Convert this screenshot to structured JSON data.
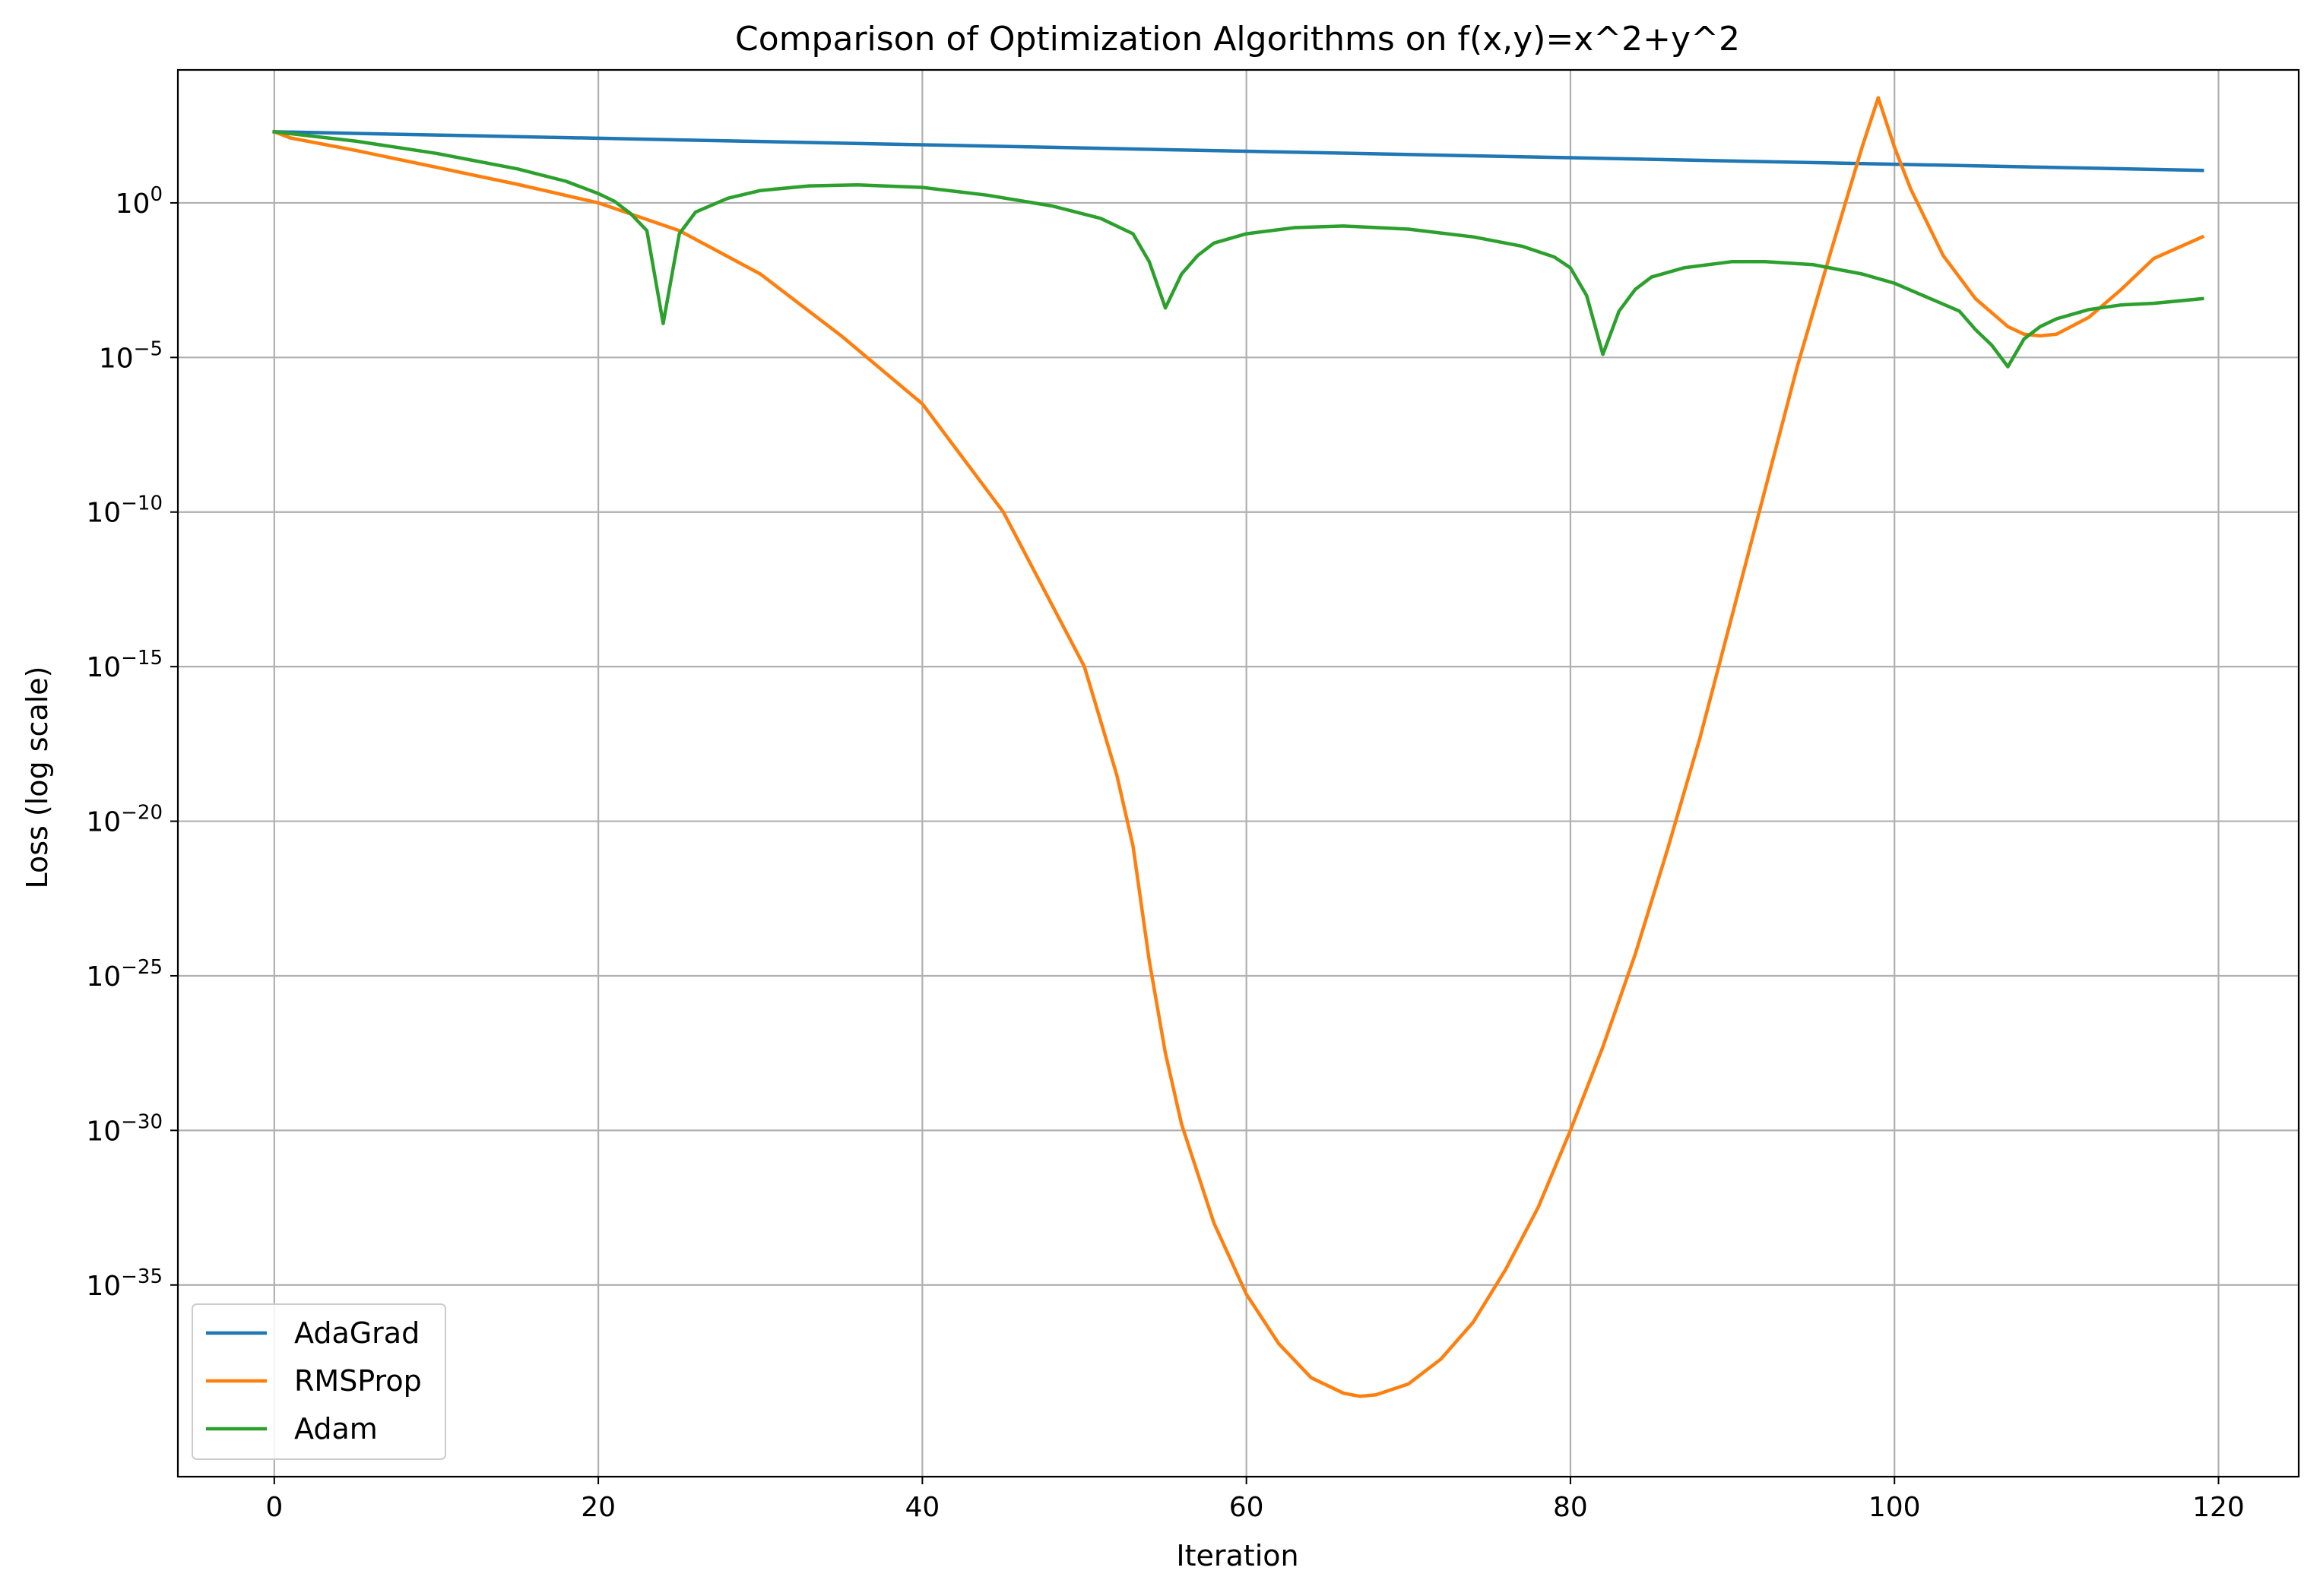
{
  "chart_data": {
    "type": "line",
    "title": "Comparison of Optimization Algorithms on f(x,y)=x^2+y^2",
    "xlabel": "Iteration",
    "ylabel": "Loss (log scale)",
    "y_scale": "log",
    "xlim": [
      -5.95,
      124.95
    ],
    "ylim_log10": [
      -41.2,
      4.3
    ],
    "grid": true,
    "legend_position": "lower-left",
    "x_ticks": [
      0,
      20,
      40,
      60,
      80,
      100,
      120
    ],
    "x_tick_labels": [
      "0",
      "20",
      "40",
      "60",
      "80",
      "100",
      "120"
    ],
    "y_ticks_log10": [
      0,
      -5,
      -10,
      -15,
      -20,
      -25,
      -30,
      -35
    ],
    "y_tick_labels": [
      {
        "base": "10",
        "exp": "0"
      },
      {
        "base": "10",
        "exp": "−5"
      },
      {
        "base": "10",
        "exp": "−10"
      },
      {
        "base": "10",
        "exp": "−15"
      },
      {
        "base": "10",
        "exp": "−20"
      },
      {
        "base": "10",
        "exp": "−25"
      },
      {
        "base": "10",
        "exp": "−30"
      },
      {
        "base": "10",
        "exp": "−35"
      }
    ],
    "series": [
      {
        "name": "AdaGrad",
        "color": "#1f77b4",
        "log10_points": [
          [
            0,
            2.3
          ],
          [
            119,
            1.05
          ]
        ]
      },
      {
        "name": "RMSProp",
        "color": "#ff7f0e",
        "log10_points": [
          [
            0,
            2.3
          ],
          [
            1,
            2.1
          ],
          [
            5,
            1.7
          ],
          [
            10,
            1.15
          ],
          [
            15,
            0.6
          ],
          [
            20,
            0.0
          ],
          [
            25,
            -0.9
          ],
          [
            30,
            -2.3
          ],
          [
            35,
            -4.3
          ],
          [
            40,
            -6.5
          ],
          [
            45,
            -10.0
          ],
          [
            50,
            -15.0
          ],
          [
            52,
            -18.5
          ],
          [
            53,
            -20.8
          ],
          [
            54,
            -24.5
          ],
          [
            55,
            -27.5
          ],
          [
            56,
            -29.8
          ],
          [
            58,
            -33.0
          ],
          [
            60,
            -35.3
          ],
          [
            62,
            -36.9
          ],
          [
            64,
            -38.0
          ],
          [
            66,
            -38.5
          ],
          [
            67,
            -38.6
          ],
          [
            68,
            -38.55
          ],
          [
            70,
            -38.2
          ],
          [
            72,
            -37.4
          ],
          [
            74,
            -36.2
          ],
          [
            76,
            -34.5
          ],
          [
            78,
            -32.5
          ],
          [
            80,
            -30.0
          ],
          [
            82,
            -27.3
          ],
          [
            84,
            -24.3
          ],
          [
            86,
            -20.9
          ],
          [
            88,
            -17.3
          ],
          [
            90,
            -13.3
          ],
          [
            92,
            -9.3
          ],
          [
            94,
            -5.3
          ],
          [
            96,
            -1.7
          ],
          [
            98,
            1.8
          ],
          [
            99,
            3.4
          ],
          [
            100,
            1.8
          ],
          [
            101,
            0.45
          ],
          [
            103,
            -1.7
          ],
          [
            105,
            -3.1
          ],
          [
            107,
            -4.0
          ],
          [
            108,
            -4.25
          ],
          [
            109,
            -4.3
          ],
          [
            110,
            -4.25
          ],
          [
            112,
            -3.7
          ],
          [
            114,
            -2.8
          ],
          [
            116,
            -1.8
          ],
          [
            119,
            -1.1
          ]
        ]
      },
      {
        "name": "Adam",
        "color": "#2ca02c",
        "log10_points": [
          [
            0,
            2.3
          ],
          [
            5,
            2.0
          ],
          [
            10,
            1.6
          ],
          [
            15,
            1.1
          ],
          [
            18,
            0.7
          ],
          [
            20,
            0.3
          ],
          [
            21,
            0.05
          ],
          [
            22,
            -0.35
          ],
          [
            23,
            -0.9
          ],
          [
            24,
            -3.9
          ],
          [
            25,
            -1.0
          ],
          [
            26,
            -0.3
          ],
          [
            28,
            0.15
          ],
          [
            30,
            0.4
          ],
          [
            33,
            0.55
          ],
          [
            36,
            0.58
          ],
          [
            40,
            0.5
          ],
          [
            44,
            0.25
          ],
          [
            48,
            -0.1
          ],
          [
            51,
            -0.5
          ],
          [
            53,
            -1.0
          ],
          [
            54,
            -1.9
          ],
          [
            55,
            -3.4
          ],
          [
            56,
            -2.3
          ],
          [
            57,
            -1.7
          ],
          [
            58,
            -1.3
          ],
          [
            60,
            -1.0
          ],
          [
            63,
            -0.8
          ],
          [
            66,
            -0.75
          ],
          [
            70,
            -0.85
          ],
          [
            74,
            -1.1
          ],
          [
            77,
            -1.4
          ],
          [
            79,
            -1.75
          ],
          [
            80,
            -2.1
          ],
          [
            81,
            -3.0
          ],
          [
            82,
            -4.9
          ],
          [
            83,
            -3.5
          ],
          [
            84,
            -2.8
          ],
          [
            85,
            -2.4
          ],
          [
            87,
            -2.1
          ],
          [
            90,
            -1.9
          ],
          [
            92,
            -1.9
          ],
          [
            95,
            -2.0
          ],
          [
            98,
            -2.3
          ],
          [
            100,
            -2.6
          ],
          [
            102,
            -3.05
          ],
          [
            104,
            -3.5
          ],
          [
            105,
            -4.1
          ],
          [
            106,
            -4.6
          ],
          [
            107,
            -5.3
          ],
          [
            108,
            -4.4
          ],
          [
            109,
            -4.0
          ],
          [
            110,
            -3.75
          ],
          [
            112,
            -3.45
          ],
          [
            114,
            -3.3
          ],
          [
            116,
            -3.25
          ],
          [
            119,
            -3.1
          ]
        ]
      }
    ]
  }
}
